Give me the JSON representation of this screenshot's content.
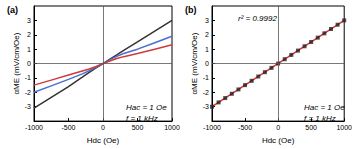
{
  "chart_data": [
    {
      "type": "line",
      "title": "(a)",
      "x_label": "Hdc (Oe)",
      "y_label": "αME (mV/cm/Oe)",
      "xlim": [
        -1000,
        1000
      ],
      "xticks": [
        -1000,
        -500,
        0,
        500,
        1000
      ],
      "ylim": [
        -4,
        4
      ],
      "yticks": [
        -3,
        -2,
        -1,
        0,
        1,
        2,
        3
      ],
      "x": [
        -1000,
        -750,
        -500,
        -300,
        -200,
        -100,
        0,
        100,
        200,
        300,
        500,
        750,
        1000
      ],
      "series": [
        {
          "color": "#333333",
          "values": [
            -3.1,
            -2.35,
            -1.6,
            -0.95,
            -0.62,
            -0.3,
            0,
            0.3,
            0.6,
            0.92,
            1.5,
            2.25,
            3.0
          ]
        },
        {
          "color": "#4a6fd0",
          "values": [
            -2.0,
            -1.55,
            -1.1,
            -0.72,
            -0.5,
            -0.26,
            0,
            0.27,
            0.5,
            0.7,
            1.0,
            1.45,
            1.9
          ]
        },
        {
          "color": "#d03a3a",
          "values": [
            -1.5,
            -1.15,
            -0.8,
            -0.52,
            -0.38,
            -0.2,
            0,
            0.18,
            0.35,
            0.48,
            0.7,
            1.0,
            1.3
          ]
        }
      ],
      "annotations": [
        "Hac = 1 Oe",
        "f = 1 kHz"
      ]
    },
    {
      "type": "scatter",
      "title": "(b)",
      "x_label": "Hdc (Oe)",
      "y_label": "αME (mV/cm/Oe)",
      "xlim": [
        -1000,
        1000
      ],
      "xticks": [
        -1000,
        -500,
        0,
        500,
        1000
      ],
      "ylim": [
        -4,
        4
      ],
      "yticks": [
        -3,
        -2,
        -1,
        0,
        1,
        2,
        3
      ],
      "series": [
        {
          "type": "scatter",
          "marker": "square",
          "color": "#222222",
          "x": [
            -1000,
            -900,
            -800,
            -700,
            -600,
            -500,
            -400,
            -300,
            -200,
            -100,
            0,
            100,
            200,
            300,
            400,
            500,
            600,
            700,
            800,
            900,
            1000
          ],
          "values": [
            -3.0,
            -2.7,
            -2.4,
            -2.1,
            -1.8,
            -1.5,
            -1.2,
            -0.9,
            -0.6,
            -0.3,
            0,
            0.3,
            0.6,
            0.9,
            1.2,
            1.5,
            1.8,
            2.1,
            2.4,
            2.7,
            3.0
          ]
        },
        {
          "type": "line",
          "color": "#e03030",
          "x": [
            -1000,
            1000
          ],
          "values": [
            -3.0,
            3.0
          ]
        }
      ],
      "annotations": [
        "r² = 0.9992",
        "Hac = 1 Oe",
        "f = 1 kHz"
      ]
    }
  ]
}
